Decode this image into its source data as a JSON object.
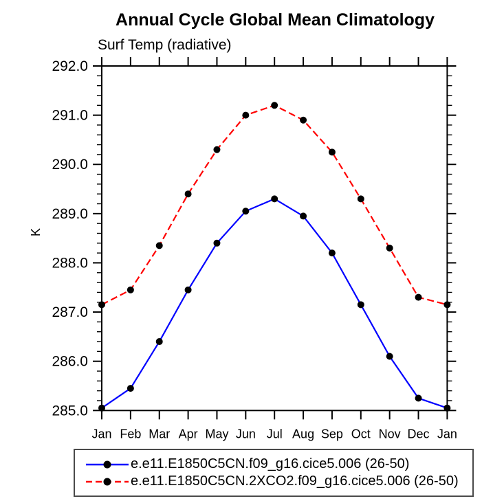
{
  "header": {
    "title": "Annual Cycle Global Mean Climatology",
    "subtitle": "Surf Temp (radiative)"
  },
  "chart_data": {
    "type": "line",
    "categories": [
      "Jan",
      "Feb",
      "Mar",
      "Apr",
      "May",
      "Jun",
      "Jul",
      "Aug",
      "Sep",
      "Oct",
      "Nov",
      "Dec",
      "Jan"
    ],
    "series": [
      {
        "name": "e.e11.E1850C5CN.f09_g16.cice5.006 (26-50)",
        "color": "#0000ff",
        "style": "solid",
        "marker": "filled-circle",
        "values": [
          285.05,
          285.45,
          286.4,
          287.45,
          288.4,
          289.05,
          289.3,
          288.95,
          288.2,
          287.15,
          286.1,
          285.25,
          285.05
        ]
      },
      {
        "name": "e.e11.E1850C5CN.2XCO2.f09_g16.cice5.006 (26-50)",
        "color": "#ff0000",
        "style": "dashed",
        "marker": "filled-circle",
        "values": [
          287.15,
          287.45,
          288.35,
          289.4,
          290.3,
          291.0,
          291.2,
          290.9,
          290.25,
          289.3,
          288.3,
          287.3,
          287.15
        ]
      }
    ],
    "title": "Annual Cycle Global Mean Climatology",
    "subtitle": "Surf Temp (radiative)",
    "xlabel": "",
    "ylabel": "K",
    "ylim": [
      285.0,
      292.0
    ],
    "y_major_step": 1.0,
    "y_minor_step": 0.2,
    "ytick_labels": [
      "285.0",
      "286.0",
      "287.0",
      "288.0",
      "289.0",
      "290.0",
      "291.0",
      "292.0"
    ],
    "grid": false,
    "legend_position": "bottom-box",
    "marker_color": "#000000",
    "axis_color": "#000000"
  }
}
